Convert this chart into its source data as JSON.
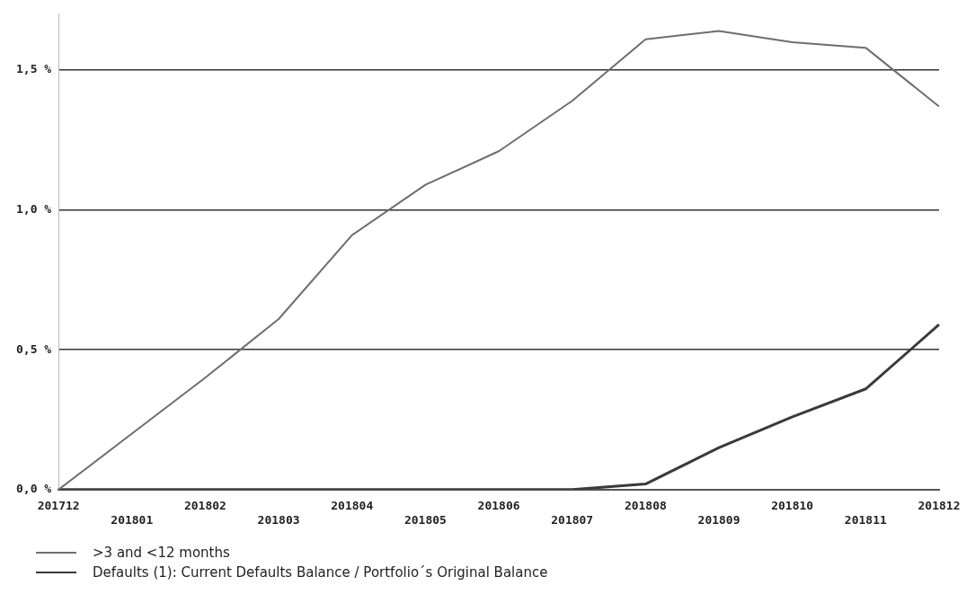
{
  "chart_data": {
    "type": "line",
    "categories": [
      "201712",
      "201801",
      "201802",
      "201803",
      "201804",
      "201805",
      "201806",
      "201807",
      "201808",
      "201809",
      "201810",
      "201811",
      "201812"
    ],
    "series": [
      {
        "name": ">3 and <12 months",
        "color": "#6e6e6e",
        "values": [
          0,
          0.2,
          0.4,
          0.61,
          0.91,
          1.09,
          1.21,
          1.39,
          1.61,
          1.64,
          1.6,
          1.58,
          1.37
        ]
      },
      {
        "name": "Defaults (1): Current Defaults Balance / Portfolio´s Original Balance",
        "color": "#3a3a3a",
        "values": [
          0,
          0,
          0,
          0,
          0,
          0,
          0,
          0,
          0.02,
          0.15,
          0.26,
          0.36,
          0.59
        ]
      }
    ],
    "ylim": [
      0,
      1.7
    ],
    "yticks": [
      {
        "value": 0,
        "label": "0,0 %"
      },
      {
        "value": 0.5,
        "label": "0,5 %"
      },
      {
        "value": 1,
        "label": "1,0 %"
      },
      {
        "value": 1.5,
        "label": "1,5 %"
      }
    ],
    "grid": "y",
    "legend": "bottom left",
    "marker": "none",
    "line_style": "solid"
  }
}
